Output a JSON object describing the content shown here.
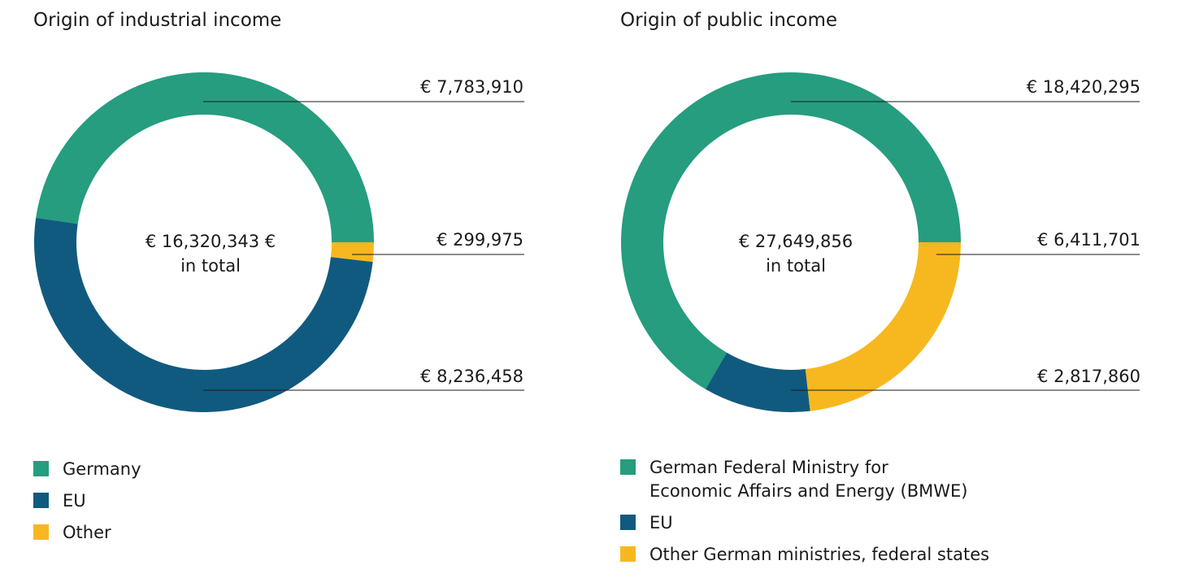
{
  "charts": [
    {
      "title": "Origin of industrial income",
      "total_amount": "€ 16,320,343 €",
      "total_suffix": "in total",
      "labels": [
        "€ 7,783,910",
        "€ 299,975",
        "€ 8,236,458"
      ],
      "legend": [
        "Germany",
        "EU",
        "Other"
      ]
    },
    {
      "title": "Origin of public income",
      "total_amount": "€ 27,649,856",
      "total_suffix": "in total",
      "labels": [
        "€ 18,420,295",
        "€ 6,411,701",
        "€ 2,817,860"
      ],
      "legend": [
        "German Federal Ministry for\nEconomic Affairs and Energy (BMWE)",
        "EU",
        "Other German ministries, federal states"
      ]
    }
  ],
  "chart_data": [
    {
      "type": "pie",
      "title": "Origin of industrial income",
      "total": 16320343,
      "categories": [
        "Germany",
        "EU",
        "Other"
      ],
      "values": [
        7783910,
        8236458,
        299975
      ],
      "colors": [
        "#259d7e",
        "#115a7f",
        "#f7b81f"
      ]
    },
    {
      "type": "pie",
      "title": "Origin of public income",
      "total": 27649856,
      "categories": [
        "German Federal Ministry for Economic Affairs and Energy (BMWE)",
        "EU",
        "Other German ministries, federal states"
      ],
      "values": [
        18420295,
        2817860,
        6411701
      ],
      "colors": [
        "#259d7e",
        "#115a7f",
        "#f7b81f"
      ]
    }
  ]
}
